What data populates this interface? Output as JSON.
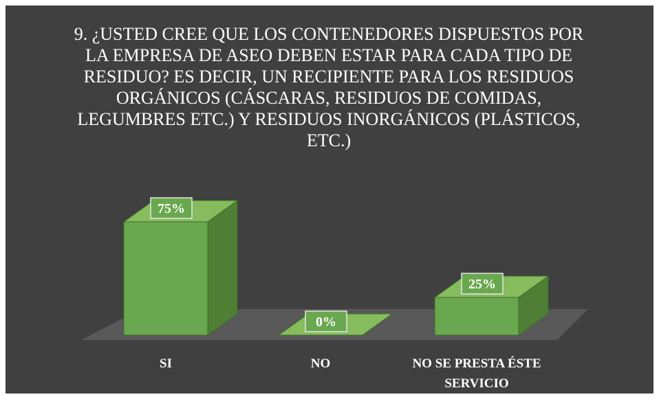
{
  "chart_data": {
    "type": "bar3d",
    "title": "9. ¿USTED CREE QUE LOS CONTENEDORES DISPUESTOS POR LA EMPRESA DE ASEO DEBEN ESTAR PARA CADA TIPO DE RESIDUO? ES DECIR, UN RECIPIENTE PARA LOS RESIDUOS ORGÁNICOS (CÁSCARAS, RESIDUOS DE COMIDAS, LEGUMBRES ETC.) Y RESIDUOS INORGÁNICOS (PLÁSTICOS, ETC.)",
    "categories": [
      "SI",
      "NO",
      "NO SE PRESTA ÉSTE SERVICIO"
    ],
    "values": [
      75,
      0,
      25
    ],
    "value_labels": [
      "75%",
      "0%",
      "25%"
    ],
    "color": "#6aa84f"
  }
}
